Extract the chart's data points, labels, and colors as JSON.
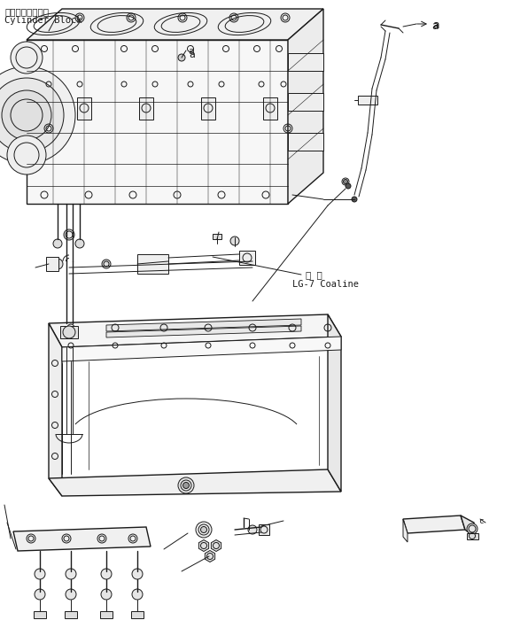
{
  "bg_color": "#ffffff",
  "line_color": "#1a1a1a",
  "label_cylinder_block_jp": "シリンダブロック",
  "label_cylinder_block_en": "Cylinder Block",
  "label_a": "a",
  "label_coating_jp": "塗 布",
  "label_coating_en": "LG-7 Coaline",
  "figsize": [
    5.96,
    7.09
  ],
  "dpi": 100
}
